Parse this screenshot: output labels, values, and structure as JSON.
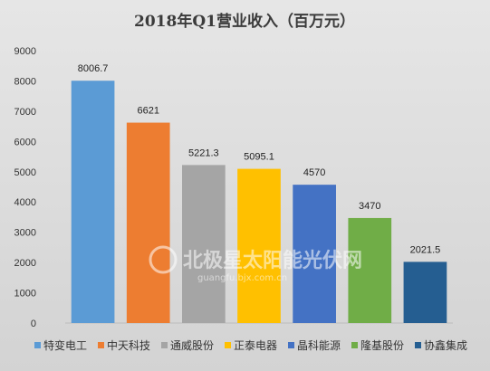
{
  "chart_data": {
    "type": "bar",
    "title": "2018年Q1营业收入（百万元）",
    "categories": [
      "特变电工",
      "中天科技",
      "通威股份",
      "正泰电器",
      "晶科能源",
      "隆基股份",
      "协鑫集成"
    ],
    "values": [
      8006.7,
      6621,
      5221.3,
      5095.1,
      4570,
      3470,
      2021.5
    ],
    "data_labels": [
      "8006.7",
      "6621",
      "5221.3",
      "5095.1",
      "4570",
      "3470",
      "2021.5"
    ],
    "colors": [
      "#5b9bd5",
      "#ed7d31",
      "#a5a5a5",
      "#ffc000",
      "#4472c4",
      "#70ad47",
      "#255e91"
    ],
    "yticks": [
      "0",
      "1000",
      "2000",
      "3000",
      "4000",
      "5000",
      "6000",
      "7000",
      "8000",
      "9000"
    ],
    "ylim": [
      0,
      9000
    ],
    "xlabel": "",
    "ylabel": "",
    "grid": false,
    "legend_position": "bottom"
  },
  "watermark": {
    "text": "北极星太阳能光伏网",
    "subtext": "guangfu.bjx.com.cn"
  }
}
